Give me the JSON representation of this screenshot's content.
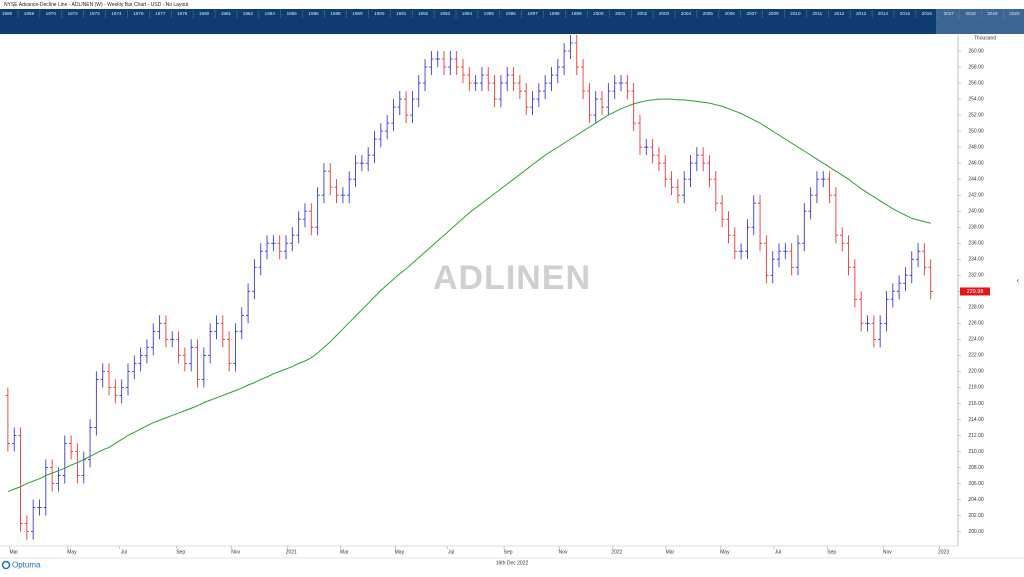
{
  "header": {
    "title": "NYSE  Advance-Decline Line - ADLINEN (W) - Weekly Bar Chart - USD - No Layout",
    "years": [
      "1968",
      "1969",
      "1970",
      "1972",
      "1973",
      "1974",
      "1976",
      "1977",
      "1978",
      "1980",
      "1981",
      "1982",
      "1984",
      "1985",
      "1986",
      "1988",
      "1989",
      "1990",
      "1991",
      "1992",
      "1993",
      "1994",
      "1995",
      "1996",
      "1997",
      "1998",
      "1999",
      "2000",
      "2001",
      "2002",
      "2003",
      "2004",
      "2005",
      "2006",
      "2007",
      "2009",
      "2010",
      "2011",
      "2012",
      "2013",
      "2014",
      "2015",
      "2016",
      "2017",
      "2018",
      "2019",
      "2020",
      "2021",
      "2022"
    ]
  },
  "chart_data": {
    "type": "ohlc",
    "watermark": "ADLINEN",
    "y_unit": "Thousand",
    "up_color": "#3a3acc",
    "down_color": "#e23b3b",
    "open": [
      217,
      211,
      212,
      201,
      200,
      203,
      203,
      208,
      206,
      207,
      211,
      210,
      207,
      209,
      213,
      219,
      220,
      218,
      217,
      218,
      220,
      221,
      222,
      223,
      225,
      226,
      224,
      224,
      222,
      221,
      223,
      219,
      222,
      225,
      226,
      224,
      221,
      225,
      227,
      230,
      233,
      235,
      236,
      236,
      235,
      236,
      237,
      239,
      240,
      238,
      242,
      245,
      243,
      242,
      242,
      244,
      246,
      246,
      247,
      249,
      250,
      251,
      253,
      254,
      252,
      254,
      256,
      258,
      259,
      259,
      258,
      259,
      258,
      257,
      256,
      256,
      257,
      256,
      254,
      256,
      257,
      256,
      255,
      253,
      254,
      255,
      256,
      257,
      258,
      260,
      261,
      258,
      255,
      252,
      254,
      253,
      255,
      256,
      256,
      255,
      251,
      248,
      248,
      247,
      246,
      244,
      243,
      242,
      244,
      246,
      247,
      246,
      244,
      241,
      239,
      237,
      235,
      235,
      238,
      241,
      236,
      232,
      234,
      235,
      235,
      233,
      236,
      240,
      242,
      244,
      244,
      242,
      237,
      236,
      233,
      229,
      226,
      226,
      224,
      226,
      229,
      230,
      231,
      232,
      234,
      235,
      233
    ],
    "high": [
      218,
      213,
      213,
      202,
      204,
      204,
      209,
      209,
      208,
      212,
      212,
      211,
      210,
      214,
      220,
      221,
      221,
      219,
      219,
      221,
      222,
      223,
      224,
      226,
      227,
      227,
      225,
      225,
      223,
      224,
      224,
      223,
      226,
      227,
      227,
      225,
      226,
      228,
      231,
      234,
      236,
      237,
      237,
      237,
      237,
      238,
      240,
      241,
      241,
      243,
      246,
      246,
      244,
      243,
      245,
      247,
      247,
      248,
      250,
      251,
      252,
      254,
      255,
      255,
      255,
      257,
      259,
      260,
      260,
      260,
      260,
      260,
      259,
      258,
      257,
      258,
      258,
      257,
      257,
      258,
      258,
      257,
      256,
      255,
      256,
      257,
      258,
      259,
      261,
      262,
      262,
      259,
      256,
      255,
      255,
      256,
      257,
      257,
      257,
      256,
      252,
      249,
      249,
      248,
      247,
      245,
      244,
      245,
      247,
      248,
      248,
      247,
      245,
      242,
      240,
      238,
      236,
      239,
      242,
      242,
      237,
      235,
      236,
      236,
      236,
      237,
      241,
      243,
      245,
      245,
      245,
      243,
      238,
      237,
      234,
      230,
      227,
      227,
      227,
      230,
      231,
      232,
      233,
      235,
      236,
      236,
      234
    ],
    "low": [
      210,
      210,
      200,
      199,
      199,
      202,
      202,
      205,
      205,
      206,
      209,
      206,
      206,
      208,
      212,
      218,
      217,
      216,
      216,
      217,
      219,
      220,
      221,
      222,
      224,
      223,
      223,
      221,
      220,
      220,
      218,
      218,
      221,
      224,
      223,
      220,
      220,
      224,
      226,
      229,
      232,
      234,
      235,
      234,
      234,
      235,
      236,
      238,
      237,
      237,
      241,
      242,
      241,
      241,
      241,
      243,
      245,
      245,
      246,
      248,
      249,
      250,
      252,
      251,
      251,
      253,
      255,
      257,
      258,
      257,
      257,
      257,
      256,
      255,
      255,
      255,
      255,
      253,
      253,
      255,
      255,
      254,
      252,
      252,
      253,
      254,
      255,
      256,
      257,
      259,
      257,
      254,
      251,
      251,
      252,
      252,
      254,
      255,
      254,
      250,
      247,
      247,
      246,
      245,
      243,
      242,
      241,
      241,
      243,
      245,
      245,
      243,
      240,
      238,
      236,
      234,
      234,
      234,
      237,
      235,
      231,
      231,
      233,
      234,
      232,
      232,
      235,
      239,
      241,
      243,
      241,
      236,
      235,
      232,
      228,
      225,
      225,
      223,
      223,
      225,
      228,
      229,
      230,
      231,
      233,
      232,
      229
    ],
    "close": [
      211,
      212,
      201,
      200,
      203,
      203,
      208,
      206,
      207,
      211,
      210,
      207,
      209,
      213,
      219,
      220,
      218,
      217,
      218,
      220,
      221,
      222,
      223,
      225,
      226,
      224,
      224,
      222,
      221,
      223,
      219,
      222,
      225,
      226,
      224,
      221,
      225,
      227,
      230,
      233,
      235,
      236,
      236,
      235,
      236,
      237,
      239,
      240,
      238,
      242,
      245,
      243,
      242,
      242,
      244,
      246,
      246,
      247,
      249,
      250,
      251,
      253,
      254,
      252,
      254,
      256,
      258,
      259,
      259,
      258,
      259,
      258,
      257,
      256,
      256,
      257,
      256,
      254,
      256,
      257,
      256,
      255,
      253,
      254,
      255,
      256,
      257,
      258,
      260,
      261,
      258,
      255,
      252,
      254,
      253,
      255,
      256,
      256,
      255,
      251,
      248,
      248,
      247,
      246,
      244,
      243,
      242,
      244,
      246,
      247,
      246,
      244,
      241,
      239,
      237,
      235,
      235,
      238,
      241,
      236,
      232,
      234,
      235,
      235,
      233,
      236,
      240,
      242,
      244,
      244,
      242,
      237,
      236,
      233,
      229,
      226,
      226,
      224,
      226,
      229,
      230,
      231,
      232,
      234,
      235,
      233,
      229.98
    ],
    "ma": {
      "color": "#2e9e2e",
      "values": [
        205,
        205.3,
        205.6,
        206,
        206.3,
        206.6,
        207,
        207.3,
        207.6,
        207.9,
        208.3,
        208.6,
        209,
        209.4,
        209.8,
        210.2,
        210.5,
        211,
        211.5,
        212,
        212.4,
        212.8,
        213.2,
        213.6,
        213.9,
        214.2,
        214.5,
        214.8,
        215.1,
        215.4,
        215.7,
        216.1,
        216.4,
        216.7,
        217,
        217.3,
        217.6,
        217.9,
        218.3,
        218.6,
        219,
        219.3,
        219.7,
        220,
        220.3,
        220.6,
        221,
        221.3,
        221.7,
        222.3,
        223,
        223.7,
        224.5,
        225.3,
        226.1,
        226.9,
        227.7,
        228.5,
        229.3,
        230.1,
        230.8,
        231.5,
        232.2,
        232.8,
        233.5,
        234.2,
        234.9,
        235.6,
        236.3,
        237,
        237.7,
        238.4,
        239.1,
        239.8,
        240.4,
        241,
        241.6,
        242.2,
        242.8,
        243.4,
        244,
        244.6,
        245.2,
        245.8,
        246.4,
        247,
        247.5,
        248,
        248.5,
        249,
        249.5,
        250,
        250.5,
        251,
        251.5,
        252,
        252.4,
        252.8,
        253.1,
        253.4,
        253.6,
        253.8,
        253.9,
        254,
        254,
        254,
        253.9,
        253.9,
        253.8,
        253.7,
        253.6,
        253.5,
        253.3,
        253.1,
        252.8,
        252.5,
        252.2,
        251.8,
        251.4,
        251,
        250.5,
        250,
        249.5,
        249,
        248.5,
        248,
        247.5,
        247,
        246.5,
        246,
        245.5,
        245,
        244.5,
        244,
        243.4,
        242.8,
        242.3,
        241.8,
        241.3,
        240.8,
        240.3,
        239.9,
        239.5,
        239.1,
        238.9,
        238.7,
        238.5
      ]
    },
    "xlim": [
      -0.3,
      150
    ],
    "xticks": [
      {
        "value": 0.3,
        "label": "Mar"
      },
      {
        "value": 9.5,
        "label": "May"
      },
      {
        "value": 17.7,
        "label": "Jul"
      },
      {
        "value": 26.7,
        "label": "Sep"
      },
      {
        "value": 35.4,
        "label": "Nov"
      },
      {
        "value": 44.2,
        "label": "2021"
      },
      {
        "value": 52.6,
        "label": "Mar"
      },
      {
        "value": 61.3,
        "label": "May"
      },
      {
        "value": 69.5,
        "label": "Jul"
      },
      {
        "value": 78.5,
        "label": "Sep"
      },
      {
        "value": 87.2,
        "label": "Nov"
      },
      {
        "value": 95.7,
        "label": "2022"
      },
      {
        "value": 104.1,
        "label": "Mar"
      },
      {
        "value": 112.8,
        "label": "May"
      },
      {
        "value": 121.2,
        "label": "Jul"
      },
      {
        "value": 129.7,
        "label": "Sep"
      },
      {
        "value": 138.5,
        "label": "Nov"
      },
      {
        "value": 147.4,
        "label": "2023"
      }
    ],
    "ylim": [
      198.2,
      262
    ],
    "yticks": [
      {
        "value": 200,
        "label": "200.00"
      },
      {
        "value": 202,
        "label": "202.00"
      },
      {
        "value": 204,
        "label": "204.00"
      },
      {
        "value": 206,
        "label": "206.00"
      },
      {
        "value": 208,
        "label": "208.00"
      },
      {
        "value": 210,
        "label": "210.00"
      },
      {
        "value": 212,
        "label": "212.00"
      },
      {
        "value": 214,
        "label": "214.00"
      },
      {
        "value": 216,
        "label": "216.00"
      },
      {
        "value": 218,
        "label": "218.00"
      },
      {
        "value": 220,
        "label": "220.00"
      },
      {
        "value": 222,
        "label": "222.00"
      },
      {
        "value": 224,
        "label": "224.00"
      },
      {
        "value": 226,
        "label": "226.00"
      },
      {
        "value": 228,
        "label": "228.00"
      },
      {
        "value": 230,
        "label": "230.00"
      },
      {
        "value": 232,
        "label": "232.00"
      },
      {
        "value": 234,
        "label": "234.00"
      },
      {
        "value": 236,
        "label": "236.00"
      },
      {
        "value": 238,
        "label": "238.00"
      },
      {
        "value": 240,
        "label": "240.00"
      },
      {
        "value": 242,
        "label": "242.00"
      },
      {
        "value": 244,
        "label": "244.00"
      },
      {
        "value": 246,
        "label": "246.00"
      },
      {
        "value": 248,
        "label": "248.00"
      },
      {
        "value": 250,
        "label": "250.00"
      },
      {
        "value": 252,
        "label": "252.00"
      },
      {
        "value": 254,
        "label": "254.00"
      },
      {
        "value": 256,
        "label": "256.00"
      },
      {
        "value": 258,
        "label": "258.00"
      },
      {
        "value": 260,
        "label": "260.00"
      }
    ]
  },
  "footer": {
    "brand": "Optuma",
    "date": "16th Dec 2022"
  }
}
